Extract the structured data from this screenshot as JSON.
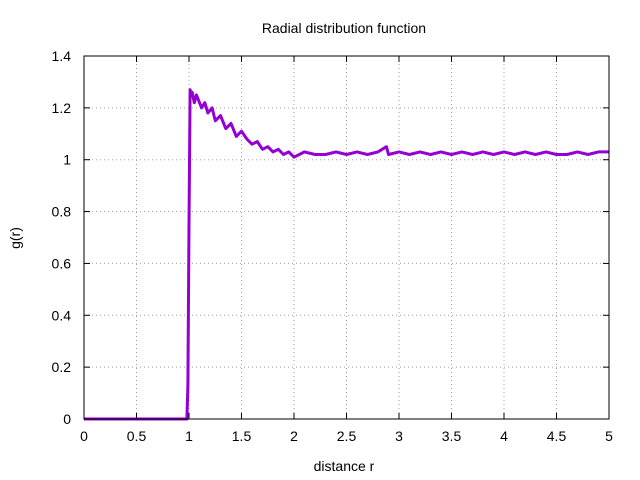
{
  "chart_data": {
    "type": "line",
    "title": "Radial distribution function",
    "xlabel": "distance r",
    "ylabel": "g(r)",
    "xlim": [
      0,
      5
    ],
    "ylim": [
      0,
      1.4
    ],
    "xticks": [
      "0",
      "0.5",
      "1",
      "1.5",
      "2",
      "2.5",
      "3",
      "3.5",
      "4",
      "4.5",
      "5"
    ],
    "yticks": [
      "0",
      "0.2",
      "0.4",
      "0.6",
      "0.8",
      "1",
      "1.2",
      "1.4"
    ],
    "grid": true,
    "series_color": "#9400d3",
    "series": [
      {
        "x": [
          0,
          0.98,
          0.99,
          1.0,
          1.01,
          1.02,
          1.03,
          1.05,
          1.07,
          1.09,
          1.12,
          1.15,
          1.18,
          1.22,
          1.25,
          1.3,
          1.35,
          1.4,
          1.45,
          1.5,
          1.55,
          1.6,
          1.65,
          1.7,
          1.75,
          1.8,
          1.85,
          1.9,
          1.95,
          2.0,
          2.1,
          2.2,
          2.3,
          2.4,
          2.5,
          2.6,
          2.7,
          2.8,
          2.88,
          2.9,
          3.0,
          3.1,
          3.2,
          3.3,
          3.4,
          3.5,
          3.6,
          3.7,
          3.8,
          3.9,
          4.0,
          4.1,
          4.2,
          4.3,
          4.4,
          4.5,
          4.6,
          4.7,
          4.8,
          4.9,
          5.0
        ],
        "y": [
          0,
          0,
          0.13,
          0.75,
          1.27,
          1.25,
          1.26,
          1.22,
          1.25,
          1.23,
          1.2,
          1.22,
          1.18,
          1.2,
          1.15,
          1.17,
          1.12,
          1.14,
          1.09,
          1.11,
          1.08,
          1.06,
          1.07,
          1.04,
          1.05,
          1.03,
          1.04,
          1.02,
          1.03,
          1.01,
          1.03,
          1.02,
          1.02,
          1.03,
          1.02,
          1.03,
          1.02,
          1.03,
          1.05,
          1.02,
          1.03,
          1.02,
          1.03,
          1.02,
          1.03,
          1.02,
          1.03,
          1.02,
          1.03,
          1.02,
          1.03,
          1.02,
          1.03,
          1.02,
          1.03,
          1.02,
          1.02,
          1.03,
          1.02,
          1.03,
          1.03
        ]
      }
    ]
  }
}
